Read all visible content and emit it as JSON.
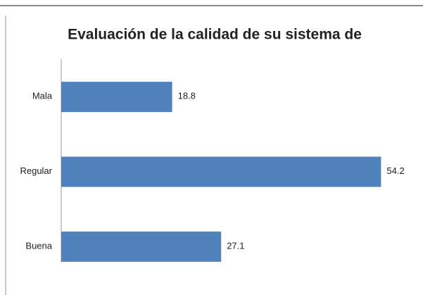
{
  "chart_data": {
    "type": "barh",
    "title": "Evaluación de la calidad de su sistema de",
    "categories": [
      "Mala",
      "Regular",
      "Buena"
    ],
    "values": [
      18.8,
      54.2,
      27.1
    ],
    "color": "#4f81bd",
    "xlim": [
      0,
      60
    ]
  }
}
